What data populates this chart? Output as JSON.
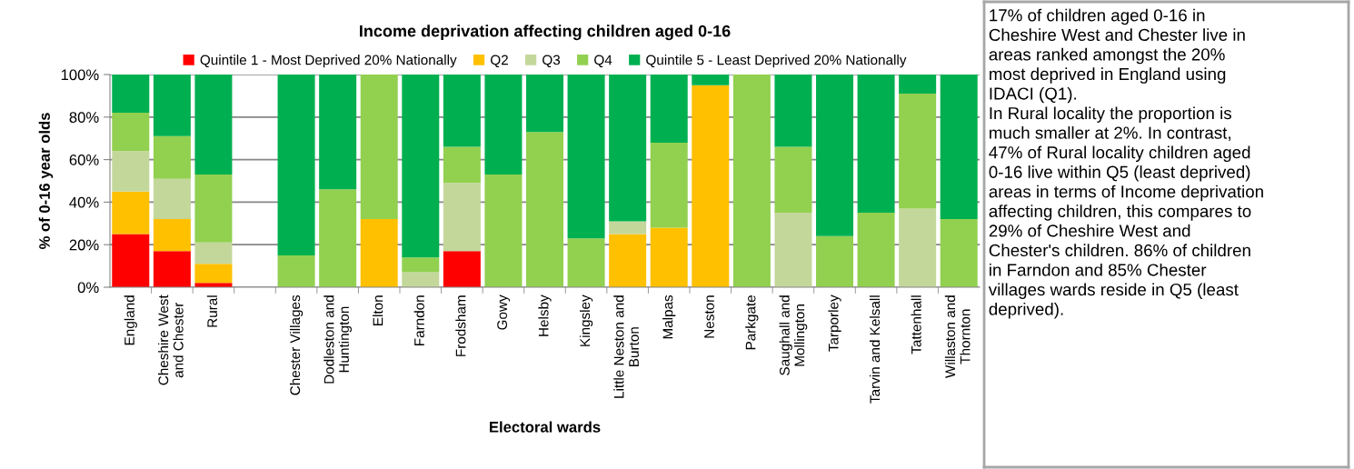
{
  "chart_data": [
    {
      "type": "bar",
      "stacked": true,
      "title": "Income deprivation affecting children aged 0-16",
      "xlabel": "Electoral wards",
      "ylabel": "% of 0-16 year olds",
      "categories": [
        "England",
        "Cheshire West\nand Chester",
        "Rural",
        null,
        "Chester Villages",
        "Dodleston and\nHuntington",
        "Elton",
        "Farndon",
        "Frodsham",
        "Gowy",
        "Helsby",
        "Kingsley",
        "Little Neston and\nBurton",
        "Malpas",
        "Neston",
        "Parkgate",
        "Saughall and\nMollington",
        "Tarporley",
        "Tarvin and Kelsall",
        "Tattenhall",
        "Willaston and\nThornton"
      ],
      "series": [
        {
          "name": "Quintile 1 - Most Deprived 20% Nationally",
          "color": "#ff0000",
          "values": [
            25,
            17,
            2,
            null,
            null,
            null,
            null,
            null,
            17,
            null,
            null,
            null,
            null,
            null,
            null,
            null,
            null,
            null,
            null,
            null,
            null
          ]
        },
        {
          "name": "Q2",
          "color": "#ffc000",
          "values": [
            20,
            15,
            9,
            null,
            null,
            null,
            32,
            null,
            null,
            null,
            null,
            null,
            25,
            28,
            95,
            null,
            null,
            null,
            null,
            null,
            null
          ]
        },
        {
          "name": "Q3",
          "color": "#c4d79b",
          "values": [
            19,
            19,
            10,
            null,
            null,
            null,
            null,
            7,
            32,
            null,
            null,
            null,
            6,
            null,
            null,
            null,
            35,
            null,
            null,
            37,
            null
          ]
        },
        {
          "name": "Q4",
          "color": "#92d050",
          "values": [
            18,
            20,
            32,
            null,
            15,
            46,
            68,
            7,
            17,
            53,
            73,
            23,
            null,
            40,
            null,
            100,
            31,
            24,
            35,
            54,
            32
          ]
        },
        {
          "name": "Quintile 5 - Least Deprived 20% Nationally",
          "color": "#00b050",
          "values": [
            18,
            29,
            47,
            null,
            85,
            54,
            null,
            86,
            34,
            47,
            27,
            77,
            69,
            32,
            5,
            null,
            34,
            76,
            65,
            9,
            68
          ]
        }
      ],
      "ylim": [
        0,
        100
      ],
      "yticks": [
        {
          "value": 0,
          "label": "0%"
        },
        {
          "value": 20,
          "label": "20%"
        },
        {
          "value": 40,
          "label": "40%"
        },
        {
          "value": 60,
          "label": "60%"
        },
        {
          "value": 80,
          "label": "80%"
        },
        {
          "value": 100,
          "label": "100%"
        }
      ],
      "grid": "y",
      "legend": "top"
    },
    {
      "type": "other",
      "annotations": [
        "17% of children aged 0-16 in\nCheshire West and Chester live in\nareas ranked amongst the 20%\nmost deprived in England using\nIDACI (Q1).",
        "In Rural locality the proportion is\nmuch smaller at 2%. In contrast,\n47% of Rural locality children aged\n0-16 live within Q5 (least deprived)\nareas in terms of Income deprivation\naffecting children, this compares to\n29% of Cheshire West and\nChester's children. 86% of children\nin Farndon and 85% Chester\nvillages wards reside in Q5 (least\ndeprived)."
      ]
    }
  ]
}
